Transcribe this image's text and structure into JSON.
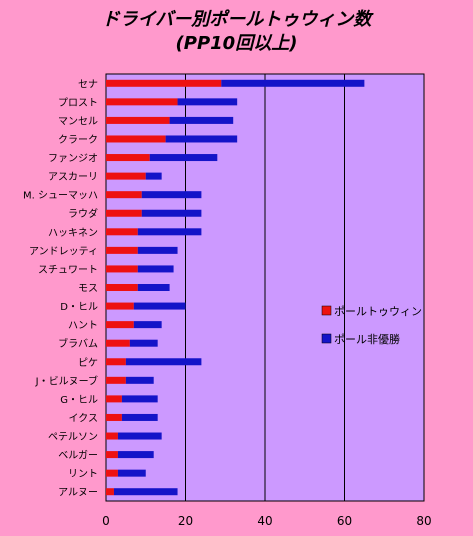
{
  "chart_data": {
    "type": "bar",
    "orientation": "horizontal",
    "stacked": true,
    "title_line1": "ドライバー別ポールトゥウィン数",
    "title_line2": "(PP10回以上)",
    "categories": [
      "セナ",
      "プロスト",
      "マンセル",
      "クラーク",
      "ファンジオ",
      "アスカーリ",
      "M. シューマッハ",
      "ラウダ",
      "ハッキネン",
      "アンドレッティ",
      "スチュワート",
      "モス",
      "D・ヒル",
      "ハント",
      "ブラバム",
      "ピケ",
      "J・ビルヌーブ",
      "G・ヒル",
      "イクス",
      "ペテルソン",
      "ベルガー",
      "リント",
      "アルヌー"
    ],
    "series": [
      {
        "name": "ポールトゥウィン",
        "color": "#ee1111",
        "values": [
          29,
          18,
          16,
          15,
          11,
          10,
          9,
          9,
          8,
          8,
          8,
          8,
          7,
          7,
          6,
          5,
          5,
          4,
          4,
          3,
          3,
          3,
          2
        ]
      },
      {
        "name": "ポール非優勝",
        "color": "#1414c8",
        "values": [
          36,
          15,
          16,
          18,
          17,
          4,
          15,
          15,
          16,
          10,
          9,
          8,
          13,
          7,
          7,
          19,
          7,
          9,
          9,
          11,
          9,
          7,
          16
        ]
      }
    ],
    "xlim": [
      0,
      80
    ],
    "xticks": [
      "0",
      "20",
      "40",
      "60",
      "80"
    ],
    "plot_background": "#cc99ff",
    "grid": "vertical",
    "legend_position": "right"
  }
}
